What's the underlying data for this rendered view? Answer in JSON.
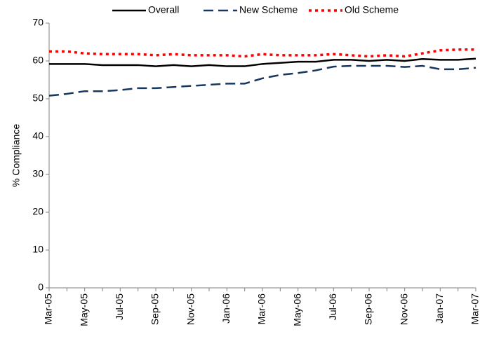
{
  "chart_data": {
    "type": "line",
    "y_label": "% Compliance",
    "categories": [
      "Mar-05",
      null,
      "May-05",
      null,
      "Jul-05",
      null,
      "Sep-05",
      null,
      "Nov-05",
      null,
      "Jan-06",
      null,
      "Mar-06",
      null,
      "May-06",
      null,
      "Jul-06",
      null,
      "Sep-06",
      null,
      "Nov-06",
      null,
      "Jan-07",
      null,
      "Mar-07"
    ],
    "series": [
      {
        "name": "Overall",
        "color": "#000000",
        "dash": "solid",
        "values": [
          59.2,
          59.2,
          59.2,
          58.9,
          58.9,
          58.9,
          58.6,
          58.9,
          58.6,
          58.9,
          58.6,
          58.6,
          59.2,
          59.5,
          59.8,
          59.8,
          60.3,
          60.3,
          60.0,
          60.3,
          60.0,
          60.5,
          60.3,
          60.3,
          60.6
        ]
      },
      {
        "name": "New Scheme",
        "color": "#17375e",
        "dash": "dashed",
        "values": [
          50.8,
          51.3,
          52.0,
          52.0,
          52.3,
          52.8,
          52.8,
          53.1,
          53.4,
          53.7,
          54.0,
          54.0,
          55.4,
          56.3,
          56.8,
          57.5,
          58.5,
          58.7,
          58.7,
          58.7,
          58.4,
          58.7,
          57.8,
          57.8,
          58.2
        ]
      },
      {
        "name": "Old Scheme",
        "color": "#ff0000",
        "dash": "dotted",
        "values": [
          62.5,
          62.5,
          62.0,
          61.8,
          61.8,
          61.8,
          61.5,
          61.8,
          61.5,
          61.5,
          61.5,
          61.2,
          61.8,
          61.5,
          61.5,
          61.5,
          61.8,
          61.5,
          61.2,
          61.5,
          61.2,
          62.0,
          62.8,
          63.0,
          63.0
        ]
      }
    ],
    "ylim": [
      0,
      70
    ],
    "yticks": [
      0,
      10,
      20,
      30,
      40,
      50,
      60,
      70
    ],
    "grid": false,
    "legend": "top"
  }
}
